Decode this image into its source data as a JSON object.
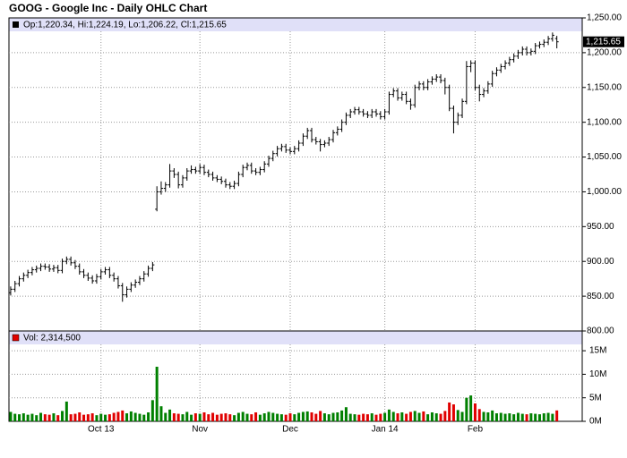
{
  "chart_data": {
    "type": "ohlc",
    "title": "GOOG - Google Inc - Daily OHLC Chart",
    "price_header": "Op:1,220.34, Hi:1,224.19, Lo:1,206.22, Cl:1,215.65",
    "volume_header": "Vol: 2,314,500",
    "last_label": "1,215.65",
    "bar_color": "#000000",
    "up_color": "#008000",
    "down_color": "#e00000",
    "grid": true,
    "xlim": [
      -0.4,
      132.9
    ],
    "xticks": [
      {
        "value": 21,
        "label": "Oct 13"
      },
      {
        "value": 44,
        "label": "Nov"
      },
      {
        "value": 65,
        "label": "Dec"
      },
      {
        "value": 87,
        "label": "Jan 14"
      },
      {
        "value": 108,
        "label": "Feb"
      }
    ],
    "ylim": [
      800,
      1250
    ],
    "yticks": [
      {
        "value": 800,
        "label": "800.00"
      },
      {
        "value": 850,
        "label": "850.00"
      },
      {
        "value": 900,
        "label": "900.00"
      },
      {
        "value": 950,
        "label": "950.00"
      },
      {
        "value": 1000,
        "label": "1,000.00"
      },
      {
        "value": 1050,
        "label": "1,050.00"
      },
      {
        "value": 1100,
        "label": "1,100.00"
      },
      {
        "value": 1150,
        "label": "1,150.00"
      },
      {
        "value": 1200,
        "label": "1,200.00"
      },
      {
        "value": 1250,
        "label": "1,250.00"
      }
    ],
    "vlim": [
      0,
      19200000
    ],
    "vticks": [
      {
        "value": 0,
        "label": "0M"
      },
      {
        "value": 5000000,
        "label": "5M"
      },
      {
        "value": 10000000,
        "label": "10M"
      },
      {
        "value": 15000000,
        "label": "15M"
      }
    ],
    "ohlc": [
      [
        855,
        864,
        851,
        860
      ],
      [
        860,
        872,
        856,
        868
      ],
      [
        868,
        879,
        864,
        875
      ],
      [
        875,
        884,
        871,
        880
      ],
      [
        880,
        888,
        876,
        884
      ],
      [
        884,
        892,
        880,
        888
      ],
      [
        888,
        894,
        884,
        890
      ],
      [
        890,
        897,
        886,
        893
      ],
      [
        893,
        897,
        888,
        892
      ],
      [
        892,
        896,
        885,
        889
      ],
      [
        889,
        895,
        885,
        891
      ],
      [
        891,
        895,
        883,
        887
      ],
      [
        887,
        904,
        883,
        900
      ],
      [
        900,
        907,
        896,
        903
      ],
      [
        903,
        907,
        894,
        898
      ],
      [
        898,
        902,
        889,
        893
      ],
      [
        893,
        897,
        881,
        885
      ],
      [
        885,
        889,
        876,
        880
      ],
      [
        880,
        884,
        872,
        876
      ],
      [
        876,
        880,
        868,
        872
      ],
      [
        872,
        882,
        868,
        878
      ],
      [
        878,
        889,
        874,
        885
      ],
      [
        885,
        892,
        881,
        888
      ],
      [
        888,
        892,
        876,
        880
      ],
      [
        880,
        884,
        871,
        875
      ],
      [
        875,
        879,
        861,
        865
      ],
      [
        865,
        869,
        842,
        852
      ],
      [
        852,
        864,
        848,
        860
      ],
      [
        860,
        870,
        856,
        866
      ],
      [
        866,
        874,
        862,
        870
      ],
      [
        870,
        879,
        866,
        875
      ],
      [
        875,
        886,
        871,
        882
      ],
      [
        882,
        894,
        878,
        890
      ],
      [
        890,
        899,
        886,
        895
      ],
      [
        975,
        1008,
        972,
        1000
      ],
      [
        1000,
        1015,
        996,
        1005
      ],
      [
        1005,
        1014,
        1000,
        1010
      ],
      [
        1010,
        1040,
        1006,
        1030
      ],
      [
        1030,
        1034,
        1020,
        1025
      ],
      [
        1025,
        1029,
        1005,
        1010
      ],
      [
        1010,
        1024,
        1006,
        1020
      ],
      [
        1020,
        1034,
        1016,
        1030
      ],
      [
        1030,
        1038,
        1026,
        1032
      ],
      [
        1032,
        1036,
        1026,
        1030
      ],
      [
        1030,
        1040,
        1026,
        1035
      ],
      [
        1035,
        1039,
        1024,
        1028
      ],
      [
        1028,
        1032,
        1021,
        1025
      ],
      [
        1025,
        1029,
        1016,
        1020
      ],
      [
        1020,
        1024,
        1014,
        1018
      ],
      [
        1018,
        1022,
        1011,
        1015
      ],
      [
        1015,
        1019,
        1006,
        1010
      ],
      [
        1010,
        1014,
        1004,
        1008
      ],
      [
        1008,
        1016,
        1004,
        1012
      ],
      [
        1012,
        1029,
        1008,
        1025
      ],
      [
        1025,
        1039,
        1021,
        1035
      ],
      [
        1035,
        1042,
        1031,
        1038
      ],
      [
        1038,
        1042,
        1026,
        1030
      ],
      [
        1030,
        1034,
        1024,
        1028
      ],
      [
        1028,
        1036,
        1024,
        1032
      ],
      [
        1032,
        1044,
        1028,
        1040
      ],
      [
        1040,
        1052,
        1036,
        1048
      ],
      [
        1048,
        1059,
        1044,
        1055
      ],
      [
        1055,
        1066,
        1051,
        1062
      ],
      [
        1062,
        1069,
        1058,
        1065
      ],
      [
        1065,
        1069,
        1056,
        1060
      ],
      [
        1060,
        1064,
        1054,
        1058
      ],
      [
        1058,
        1066,
        1054,
        1062
      ],
      [
        1062,
        1074,
        1058,
        1070
      ],
      [
        1070,
        1084,
        1066,
        1080
      ],
      [
        1080,
        1092,
        1076,
        1088
      ],
      [
        1088,
        1092,
        1071,
        1075
      ],
      [
        1075,
        1079,
        1068,
        1072
      ],
      [
        1072,
        1076,
        1058,
        1068
      ],
      [
        1068,
        1074,
        1064,
        1070
      ],
      [
        1070,
        1079,
        1066,
        1075
      ],
      [
        1075,
        1089,
        1071,
        1085
      ],
      [
        1085,
        1094,
        1081,
        1090
      ],
      [
        1090,
        1104,
        1086,
        1100
      ],
      [
        1100,
        1114,
        1096,
        1110
      ],
      [
        1110,
        1119,
        1106,
        1115
      ],
      [
        1115,
        1122,
        1111,
        1118
      ],
      [
        1118,
        1122,
        1111,
        1115
      ],
      [
        1115,
        1119,
        1108,
        1112
      ],
      [
        1112,
        1116,
        1106,
        1110
      ],
      [
        1110,
        1119,
        1106,
        1115
      ],
      [
        1115,
        1119,
        1108,
        1112
      ],
      [
        1112,
        1116,
        1104,
        1108
      ],
      [
        1108,
        1119,
        1104,
        1115
      ],
      [
        1115,
        1144,
        1111,
        1140
      ],
      [
        1140,
        1149,
        1136,
        1145
      ],
      [
        1145,
        1149,
        1131,
        1135
      ],
      [
        1135,
        1144,
        1131,
        1140
      ],
      [
        1140,
        1144,
        1126,
        1130
      ],
      [
        1130,
        1134,
        1118,
        1125
      ],
      [
        1125,
        1154,
        1121,
        1150
      ],
      [
        1150,
        1159,
        1146,
        1155
      ],
      [
        1155,
        1159,
        1146,
        1150
      ],
      [
        1150,
        1162,
        1146,
        1158
      ],
      [
        1158,
        1166,
        1154,
        1162
      ],
      [
        1162,
        1169,
        1158,
        1165
      ],
      [
        1165,
        1169,
        1156,
        1160
      ],
      [
        1160,
        1164,
        1140,
        1150
      ],
      [
        1150,
        1154,
        1116,
        1120
      ],
      [
        1120,
        1124,
        1084,
        1100
      ],
      [
        1100,
        1114,
        1096,
        1110
      ],
      [
        1110,
        1134,
        1106,
        1130
      ],
      [
        1130,
        1188,
        1126,
        1180
      ],
      [
        1180,
        1189,
        1172,
        1185
      ],
      [
        1185,
        1189,
        1146,
        1150
      ],
      [
        1150,
        1154,
        1130,
        1140
      ],
      [
        1140,
        1149,
        1136,
        1145
      ],
      [
        1145,
        1159,
        1141,
        1155
      ],
      [
        1155,
        1174,
        1151,
        1170
      ],
      [
        1170,
        1179,
        1166,
        1175
      ],
      [
        1175,
        1184,
        1171,
        1180
      ],
      [
        1180,
        1189,
        1176,
        1185
      ],
      [
        1185,
        1194,
        1181,
        1190
      ],
      [
        1190,
        1199,
        1186,
        1195
      ],
      [
        1195,
        1204,
        1191,
        1200
      ],
      [
        1200,
        1209,
        1196,
        1205
      ],
      [
        1205,
        1209,
        1196,
        1200
      ],
      [
        1200,
        1206,
        1196,
        1202
      ],
      [
        1202,
        1214,
        1198,
        1210
      ],
      [
        1210,
        1216,
        1206,
        1212
      ],
      [
        1212,
        1219,
        1208,
        1215
      ],
      [
        1215,
        1224,
        1211,
        1220
      ],
      [
        1220,
        1229,
        1216,
        1225
      ],
      [
        1220.34,
        1224.19,
        1206.22,
        1215.65
      ]
    ],
    "volumes": [
      2000000,
      1600000,
      1500000,
      1700000,
      1400000,
      1600000,
      1300000,
      1800000,
      1500000,
      1400000,
      1700000,
      1300000,
      2200000,
      4200000,
      1500000,
      1600000,
      1900000,
      1400000,
      1500000,
      1700000,
      1300000,
      1600000,
      1400000,
      1500000,
      1800000,
      2000000,
      2300000,
      1700000,
      2100000,
      1800000,
      1600000,
      1400000,
      1900000,
      4500000,
      11600000,
      3200000,
      1800000,
      2500000,
      1700000,
      1600000,
      1500000,
      2000000,
      1400000,
      1700000,
      1600000,
      1900000,
      1500000,
      1800000,
      1400000,
      1600000,
      1700000,
      1500000,
      1300000,
      1800000,
      2000000,
      1600000,
      1500000,
      1900000,
      1400000,
      1700000,
      2000000,
      1800000,
      1600000,
      1500000,
      1400000,
      1700000,
      1500000,
      1800000,
      2000000,
      2100000,
      1900000,
      1600000,
      2200000,
      1700000,
      1500000,
      1800000,
      1900000,
      2300000,
      3000000,
      1600000,
      1500000,
      1400000,
      1600000,
      1500000,
      1700000,
      1400000,
      1600000,
      1800000,
      2500000,
      2000000,
      1700000,
      1900000,
      1600000,
      2000000,
      2200000,
      1800000,
      2100000,
      1500000,
      1900000,
      1700000,
      1600000,
      2200000,
      4000000,
      3600000,
      2400000,
      2000000,
      5000000,
      5500000,
      3800000,
      2600000,
      2000000,
      1900000,
      2300000,
      1700000,
      1800000,
      1600000,
      1700000,
      1500000,
      1800000,
      1600000,
      1500000,
      1700000,
      1600000,
      1500000,
      1700000,
      1800000,
      1600000,
      2314500
    ]
  }
}
